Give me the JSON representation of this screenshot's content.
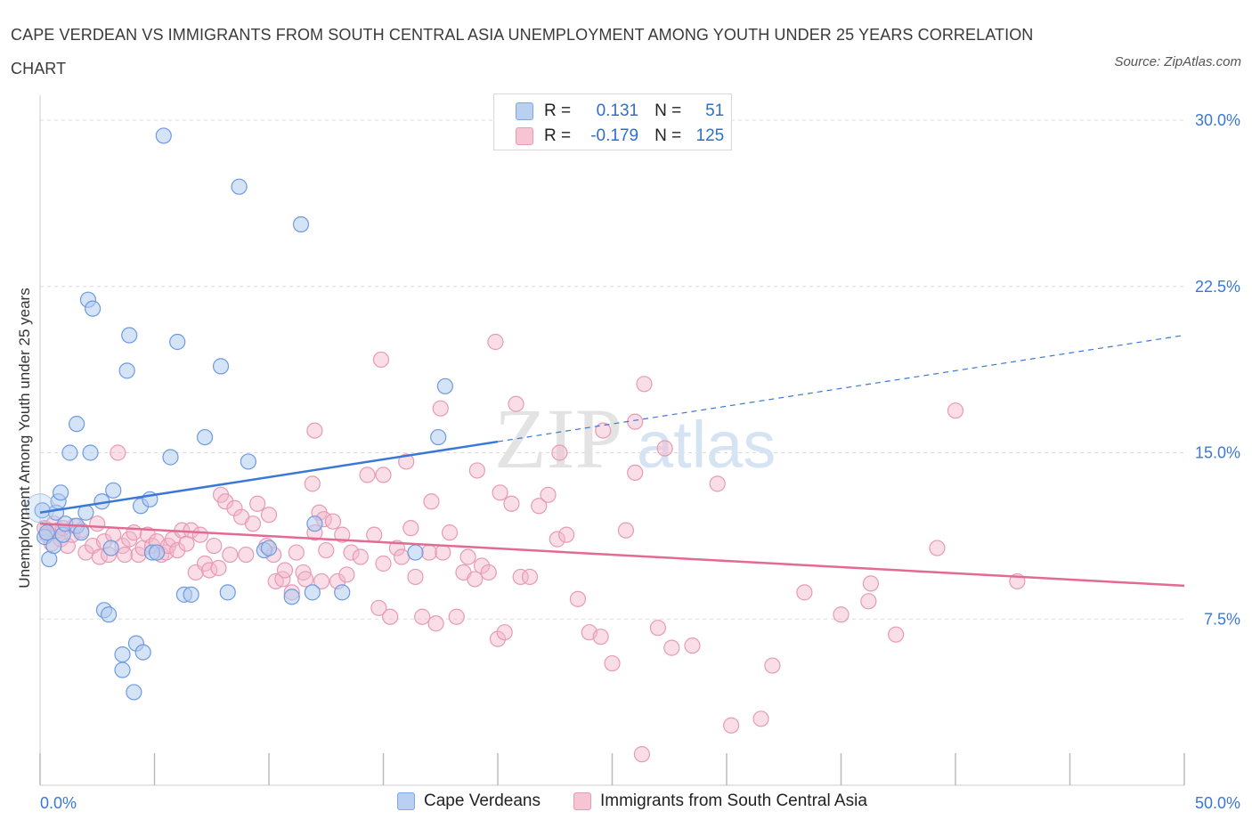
{
  "title": "CAPE VERDEAN VS IMMIGRANTS FROM SOUTH CENTRAL ASIA UNEMPLOYMENT AMONG YOUTH UNDER 25 YEARS CORRELATION CHART",
  "source": "Source: ZipAtlas.com",
  "watermark": {
    "zip": "ZIP",
    "atlas": "atlas"
  },
  "legend": {
    "r_label": "R =",
    "n_label": "N =",
    "rows": [
      {
        "r": "0.131",
        "n": "51"
      },
      {
        "r": "-0.179",
        "n": "125"
      }
    ]
  },
  "colors": {
    "blue": "#3b78d6",
    "pink": "#e36a94",
    "blue_fill": "#b9d0f2",
    "pink_fill": "#f6c4d3"
  },
  "chart_data": {
    "type": "scatter",
    "ylabel": "Unemployment Among Youth under 25 years",
    "xlim": [
      0,
      50
    ],
    "ylim": [
      0,
      30
    ],
    "x_tick_labels": [
      {
        "value": 0,
        "label": "0.0%"
      },
      {
        "value": 50,
        "label": "50.0%"
      }
    ],
    "y_tick_labels": [
      {
        "value": 7.5,
        "label": "7.5%"
      },
      {
        "value": 15,
        "label": "15.0%"
      },
      {
        "value": 22.5,
        "label": "22.5%"
      },
      {
        "value": 30,
        "label": "30.0%"
      }
    ],
    "series": [
      {
        "name": "Cape Verdeans",
        "color": "#3b78d6",
        "trend": {
          "x0": 0,
          "y0": 12.3,
          "x1": 20,
          "y1": 15.5,
          "dash_to_x": 50,
          "dash_to_y": 20.3
        },
        "points": [
          [
            0.1,
            12.4
          ],
          [
            0.2,
            11.2
          ],
          [
            0.3,
            11.4
          ],
          [
            0.4,
            10.2
          ],
          [
            0.6,
            10.8
          ],
          [
            0.7,
            12.3
          ],
          [
            0.8,
            12.8
          ],
          [
            0.9,
            13.2
          ],
          [
            1.0,
            11.3
          ],
          [
            1.1,
            11.8
          ],
          [
            1.3,
            15.0
          ],
          [
            1.6,
            11.7
          ],
          [
            1.6,
            16.3
          ],
          [
            1.8,
            11.4
          ],
          [
            2.0,
            12.3
          ],
          [
            2.1,
            21.9
          ],
          [
            2.2,
            15.0
          ],
          [
            2.3,
            21.5
          ],
          [
            2.7,
            12.8
          ],
          [
            2.8,
            7.9
          ],
          [
            3.0,
            7.7
          ],
          [
            3.1,
            10.7
          ],
          [
            3.2,
            13.3
          ],
          [
            3.6,
            5.2
          ],
          [
            3.6,
            5.9
          ],
          [
            3.8,
            18.7
          ],
          [
            3.9,
            20.3
          ],
          [
            4.1,
            4.2
          ],
          [
            4.2,
            6.4
          ],
          [
            4.4,
            12.6
          ],
          [
            4.5,
            6.0
          ],
          [
            4.8,
            12.9
          ],
          [
            4.9,
            10.5
          ],
          [
            5.1,
            10.5
          ],
          [
            5.4,
            29.3
          ],
          [
            5.7,
            14.8
          ],
          [
            6.0,
            20.0
          ],
          [
            6.3,
            8.6
          ],
          [
            6.6,
            8.6
          ],
          [
            7.2,
            15.7
          ],
          [
            7.9,
            18.9
          ],
          [
            8.2,
            8.7
          ],
          [
            8.7,
            27.0
          ],
          [
            9.1,
            14.6
          ],
          [
            9.8,
            10.6
          ],
          [
            10.0,
            10.7
          ],
          [
            11.0,
            8.5
          ],
          [
            11.4,
            25.3
          ],
          [
            11.9,
            8.7
          ],
          [
            12.0,
            11.8
          ],
          [
            13.2,
            8.7
          ],
          [
            16.4,
            10.5
          ],
          [
            17.4,
            15.7
          ],
          [
            17.7,
            18.0
          ]
        ]
      },
      {
        "name": "Immigrants from South Central Asia",
        "color": "#e36a94",
        "trend": {
          "x0": 0,
          "y0": 11.8,
          "x1": 50,
          "y1": 9.0
        },
        "points": [
          [
            0.2,
            11.6
          ],
          [
            0.3,
            11.3
          ],
          [
            0.5,
            10.9
          ],
          [
            0.6,
            11.8
          ],
          [
            0.8,
            11.5
          ],
          [
            0.9,
            11.1
          ],
          [
            1.0,
            11.6
          ],
          [
            1.2,
            10.8
          ],
          [
            1.4,
            11.3
          ],
          [
            1.5,
            11.7
          ],
          [
            1.8,
            11.5
          ],
          [
            2.0,
            10.5
          ],
          [
            2.3,
            10.8
          ],
          [
            2.5,
            11.8
          ],
          [
            2.6,
            10.3
          ],
          [
            2.8,
            11.0
          ],
          [
            3.0,
            10.4
          ],
          [
            3.2,
            11.3
          ],
          [
            3.4,
            15.0
          ],
          [
            3.6,
            10.8
          ],
          [
            3.7,
            10.4
          ],
          [
            3.9,
            11.1
          ],
          [
            4.1,
            11.4
          ],
          [
            4.3,
            10.4
          ],
          [
            4.5,
            10.7
          ],
          [
            4.7,
            11.3
          ],
          [
            4.9,
            10.8
          ],
          [
            5.1,
            11.0
          ],
          [
            5.3,
            10.4
          ],
          [
            5.5,
            10.5
          ],
          [
            5.6,
            10.8
          ],
          [
            5.8,
            11.1
          ],
          [
            6.0,
            10.6
          ],
          [
            6.2,
            11.5
          ],
          [
            6.4,
            10.9
          ],
          [
            6.6,
            11.5
          ],
          [
            6.8,
            9.6
          ],
          [
            7.0,
            11.3
          ],
          [
            7.2,
            10.0
          ],
          [
            7.4,
            9.7
          ],
          [
            7.6,
            10.8
          ],
          [
            7.8,
            9.8
          ],
          [
            7.9,
            13.1
          ],
          [
            8.1,
            12.8
          ],
          [
            8.3,
            10.4
          ],
          [
            8.5,
            12.5
          ],
          [
            8.8,
            12.1
          ],
          [
            9.0,
            10.4
          ],
          [
            9.3,
            11.8
          ],
          [
            9.5,
            12.7
          ],
          [
            9.9,
            10.8
          ],
          [
            10.0,
            12.2
          ],
          [
            10.2,
            10.4
          ],
          [
            10.3,
            9.2
          ],
          [
            10.6,
            9.3
          ],
          [
            10.7,
            9.7
          ],
          [
            11.0,
            8.7
          ],
          [
            11.2,
            10.5
          ],
          [
            11.5,
            9.6
          ],
          [
            11.6,
            9.3
          ],
          [
            11.9,
            13.6
          ],
          [
            12.0,
            11.4
          ],
          [
            12.2,
            12.3
          ],
          [
            12.3,
            9.2
          ],
          [
            12.4,
            12.0
          ],
          [
            12.5,
            10.6
          ],
          [
            12.8,
            11.9
          ],
          [
            13.0,
            9.2
          ],
          [
            13.2,
            11.3
          ],
          [
            13.4,
            9.5
          ],
          [
            13.6,
            10.5
          ],
          [
            14.0,
            10.3
          ],
          [
            14.3,
            14.0
          ],
          [
            14.6,
            11.3
          ],
          [
            14.8,
            8.0
          ],
          [
            15.0,
            10.0
          ],
          [
            15.3,
            7.6
          ],
          [
            15.6,
            10.7
          ],
          [
            15.8,
            10.3
          ],
          [
            16.2,
            11.6
          ],
          [
            16.4,
            9.4
          ],
          [
            16.7,
            7.6
          ],
          [
            17.0,
            10.5
          ],
          [
            17.3,
            7.3
          ],
          [
            17.6,
            10.5
          ],
          [
            17.9,
            11.4
          ],
          [
            18.2,
            7.6
          ],
          [
            18.5,
            9.6
          ],
          [
            18.7,
            10.3
          ],
          [
            19.0,
            9.3
          ],
          [
            19.3,
            9.9
          ],
          [
            19.6,
            9.6
          ],
          [
            19.9,
            20.0
          ],
          [
            20.0,
            6.6
          ],
          [
            20.3,
            6.9
          ],
          [
            20.6,
            12.7
          ],
          [
            20.8,
            17.2
          ],
          [
            21.0,
            9.4
          ],
          [
            21.4,
            9.4
          ],
          [
            21.8,
            12.6
          ],
          [
            22.2,
            13.1
          ],
          [
            22.6,
            11.1
          ],
          [
            23.0,
            11.3
          ],
          [
            23.5,
            8.4
          ],
          [
            24.0,
            6.9
          ],
          [
            24.5,
            6.7
          ],
          [
            25.0,
            5.5
          ],
          [
            25.6,
            11.5
          ],
          [
            26.0,
            14.1
          ],
          [
            26.4,
            18.1
          ],
          [
            27.0,
            7.1
          ],
          [
            27.6,
            6.2
          ],
          [
            28.5,
            6.3
          ],
          [
            29.6,
            13.6
          ],
          [
            30.2,
            2.7
          ],
          [
            31.5,
            3.0
          ],
          [
            32.0,
            5.4
          ],
          [
            33.4,
            8.7
          ],
          [
            35.0,
            7.7
          ],
          [
            36.2,
            8.3
          ],
          [
            36.3,
            9.1
          ],
          [
            37.4,
            6.8
          ],
          [
            39.2,
            10.7
          ],
          [
            40.0,
            16.9
          ],
          [
            42.7,
            9.2
          ],
          [
            12.0,
            16.0
          ],
          [
            14.9,
            19.2
          ],
          [
            17.5,
            17.0
          ],
          [
            19.1,
            14.2
          ],
          [
            20.1,
            13.2
          ],
          [
            22.7,
            15.0
          ],
          [
            27.3,
            15.2
          ],
          [
            26.0,
            16.4
          ],
          [
            17.1,
            12.8
          ],
          [
            26.3,
            1.4
          ],
          [
            24.6,
            16.0
          ],
          [
            15.0,
            14.0
          ],
          [
            16.0,
            14.6
          ]
        ]
      }
    ]
  },
  "bottom_legend": [
    {
      "label": "Cape Verdeans"
    },
    {
      "label": "Immigrants from South Central Asia"
    }
  ]
}
